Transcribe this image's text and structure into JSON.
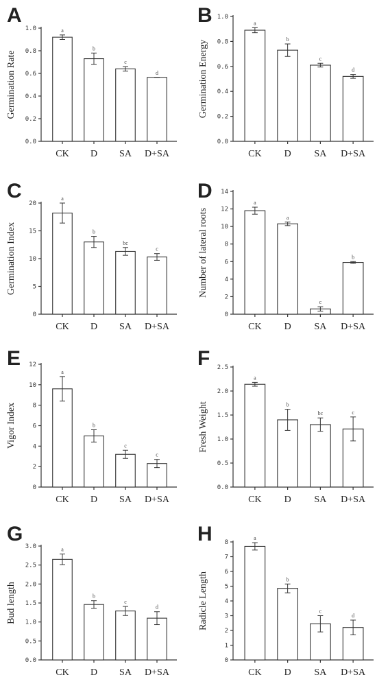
{
  "chart_data": [
    {
      "panel": "A",
      "type": "bar",
      "categories": [
        "CK",
        "D",
        "SA",
        "D+SA"
      ],
      "values": [
        0.92,
        0.73,
        0.64,
        0.565
      ],
      "errors": [
        0.02,
        0.05,
        0.02,
        0.0
      ],
      "significance": [
        "a",
        "b",
        "c",
        "d"
      ],
      "ylabel": "Germination Rate",
      "ylim": [
        0,
        1.0
      ],
      "yticks": [
        "0.0",
        "0.2",
        "0.4",
        "0.6",
        "0.8",
        "1.0"
      ]
    },
    {
      "panel": "B",
      "type": "bar",
      "categories": [
        "CK",
        "D",
        "SA",
        "D+SA"
      ],
      "values": [
        0.89,
        0.73,
        0.61,
        0.52
      ],
      "errors": [
        0.02,
        0.05,
        0.015,
        0.015
      ],
      "significance": [
        "a",
        "b",
        "c",
        "d"
      ],
      "ylabel": "Germination Energy",
      "ylim": [
        0,
        1.0
      ],
      "yticks": [
        "0.0",
        "0.2",
        "0.4",
        "0.6",
        "0.8",
        "1.0"
      ]
    },
    {
      "panel": "C",
      "type": "bar",
      "categories": [
        "CK",
        "D",
        "SA",
        "D+SA"
      ],
      "values": [
        18.2,
        13.0,
        11.3,
        10.3
      ],
      "errors": [
        1.8,
        1.0,
        0.7,
        0.6
      ],
      "significance": [
        "a",
        "b",
        "bc",
        "c"
      ],
      "ylabel": "Germination Index",
      "ylim": [
        0,
        20
      ],
      "yticks": [
        "0",
        "5",
        "10",
        "15",
        "20"
      ]
    },
    {
      "panel": "D",
      "type": "bar",
      "categories": [
        "CK",
        "D",
        "SA",
        "D+SA"
      ],
      "values": [
        11.8,
        10.3,
        0.6,
        5.9
      ],
      "errors": [
        0.4,
        0.2,
        0.25,
        0.1
      ],
      "significance": [
        "a",
        "a",
        "c",
        "b"
      ],
      "ylabel": "Number of lateral roots",
      "ylim": [
        0,
        14
      ],
      "yticks": [
        "0",
        "2",
        "4",
        "6",
        "8",
        "10",
        "12",
        "14"
      ]
    },
    {
      "panel": "E",
      "type": "bar",
      "categories": [
        "CK",
        "D",
        "SA",
        "D+SA"
      ],
      "values": [
        9.6,
        5.0,
        3.2,
        2.3
      ],
      "errors": [
        1.2,
        0.6,
        0.4,
        0.4
      ],
      "significance": [
        "a",
        "b",
        "c",
        "c"
      ],
      "ylabel": "Vigor Index",
      "ylim": [
        0,
        12
      ],
      "yticks": [
        "0",
        "2",
        "4",
        "6",
        "8",
        "10",
        "12"
      ]
    },
    {
      "panel": "F",
      "type": "bar",
      "categories": [
        "CK",
        "D",
        "SA",
        "D+SA"
      ],
      "values": [
        2.14,
        1.4,
        1.3,
        1.21
      ],
      "errors": [
        0.04,
        0.22,
        0.14,
        0.25
      ],
      "significance": [
        "a",
        "b",
        "bc",
        "c"
      ],
      "ylabel": "Fresh Weight",
      "ylim": [
        0,
        2.5
      ],
      "yticks": [
        "0.0",
        "0.5",
        "1.0",
        "1.5",
        "2.0",
        "2.5"
      ]
    },
    {
      "panel": "G",
      "type": "bar",
      "categories": [
        "CK",
        "D",
        "SA",
        "D+SA"
      ],
      "values": [
        2.65,
        1.46,
        1.29,
        1.1
      ],
      "errors": [
        0.14,
        0.1,
        0.12,
        0.17
      ],
      "significance": [
        "a",
        "b",
        "c",
        "d"
      ],
      "ylabel": "Bud length",
      "ylim": [
        0,
        3.0
      ],
      "yticks": [
        "0.0",
        "0.5",
        "1.0",
        "1.5",
        "2.0",
        "2.5",
        "3.0"
      ]
    },
    {
      "panel": "H",
      "type": "bar",
      "categories": [
        "CK",
        "D",
        "SA",
        "D+SA"
      ],
      "values": [
        7.7,
        4.85,
        2.45,
        2.2
      ],
      "errors": [
        0.25,
        0.3,
        0.55,
        0.5
      ],
      "significance": [
        "a",
        "b",
        "c",
        "d"
      ],
      "ylabel": "Radicle Length",
      "ylim": [
        0,
        8
      ],
      "yticks": [
        "0",
        "1",
        "2",
        "3",
        "4",
        "5",
        "6",
        "7",
        "8"
      ]
    }
  ]
}
